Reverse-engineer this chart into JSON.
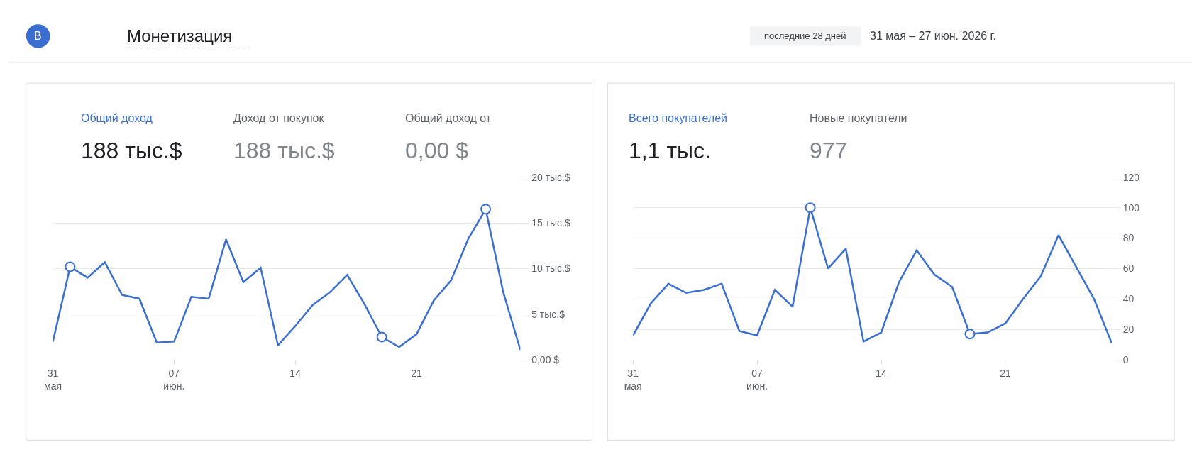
{
  "chart_data": [
    {
      "type": "other",
      "title": "Монетизация",
      "annotations": [
        "B",
        "последние 28 дней",
        "31 мая – 27 июн. 2026 г."
      ]
    },
    {
      "type": "line",
      "annotations": [
        "Общий доход",
        "188 тыс.$",
        "Доход от покупок",
        "188 тыс.$",
        "Общий доход от",
        "0,00 $"
      ],
      "x": [
        "2026-05-31",
        "2026-06-01",
        "2026-06-02",
        "2026-06-03",
        "2026-06-04",
        "2026-06-05",
        "2026-06-06",
        "2026-06-07",
        "2026-06-08",
        "2026-06-09",
        "2026-06-10",
        "2026-06-11",
        "2026-06-12",
        "2026-06-13",
        "2026-06-14",
        "2026-06-15",
        "2026-06-16",
        "2026-06-17",
        "2026-06-18",
        "2026-06-19",
        "2026-06-20",
        "2026-06-21",
        "2026-06-22",
        "2026-06-23",
        "2026-06-24",
        "2026-06-25",
        "2026-06-26",
        "2026-06-27"
      ],
      "series": [
        {
          "color": "#3a6fd1",
          "values": [
            2.0,
            10.2,
            9.0,
            10.7,
            7.1,
            6.7,
            1.9,
            2.0,
            6.9,
            6.7,
            13.2,
            8.5,
            10.1,
            1.6,
            3.7,
            6.0,
            7.4,
            9.3,
            6.1,
            2.5,
            1.4,
            2.8,
            6.5,
            8.7,
            13.3,
            16.5,
            7.5,
            1.1
          ]
        },
        {
          "type": "scatter",
          "marker": "circle",
          "color": "#3a6fd1",
          "x": [
            "2026-06-01",
            "2026-06-19",
            "2026-06-25"
          ],
          "values": [
            10.2,
            2.5,
            16.5
          ]
        }
      ],
      "xlim": [
        "2026-05-31",
        "2026-06-27"
      ],
      "xticks": [
        {
          "value": "2026-05-31",
          "label": "31\nмая"
        },
        {
          "value": "2026-06-07",
          "label": "07\nиюн."
        },
        {
          "value": "2026-06-14",
          "label": "14"
        },
        {
          "value": "2026-06-21",
          "label": "21"
        }
      ],
      "ylim": [
        0,
        20
      ],
      "yticks": [
        {
          "value": 0,
          "label": "0,00 $"
        },
        {
          "value": 5,
          "label": "5 тыс.$"
        },
        {
          "value": 10,
          "label": "10 тыс.$"
        },
        {
          "value": 15,
          "label": "15 тыс.$"
        },
        {
          "value": 20,
          "label": "20 тыс.$"
        }
      ],
      "grid": "y"
    },
    {
      "type": "line",
      "annotations": [
        "Всего покупателей",
        "1,1 тыс.",
        "Новые покупатели",
        "977"
      ],
      "x": [
        "2026-05-31",
        "2026-06-01",
        "2026-06-02",
        "2026-06-03",
        "2026-06-04",
        "2026-06-05",
        "2026-06-06",
        "2026-06-07",
        "2026-06-08",
        "2026-06-09",
        "2026-06-10",
        "2026-06-11",
        "2026-06-12",
        "2026-06-13",
        "2026-06-14",
        "2026-06-15",
        "2026-06-16",
        "2026-06-17",
        "2026-06-18",
        "2026-06-19",
        "2026-06-20",
        "2026-06-21",
        "2026-06-22",
        "2026-06-23",
        "2026-06-24",
        "2026-06-25",
        "2026-06-26",
        "2026-06-27"
      ],
      "series": [
        {
          "color": "#3a6fd1",
          "values": [
            16,
            37,
            50,
            44,
            46,
            50,
            19,
            16,
            46,
            35,
            100,
            60,
            73,
            12,
            18,
            51,
            72,
            56,
            48,
            17,
            18,
            24,
            40,
            55,
            82,
            61,
            40,
            11
          ]
        },
        {
          "type": "scatter",
          "marker": "circle",
          "color": "#3a6fd1",
          "x": [
            "2026-06-10",
            "2026-06-19"
          ],
          "values": [
            100,
            17
          ]
        }
      ],
      "xlim": [
        "2026-05-31",
        "2026-06-27"
      ],
      "xticks": [
        {
          "value": "2026-05-31",
          "label": "31\nмая"
        },
        {
          "value": "2026-06-07",
          "label": "07\nиюн."
        },
        {
          "value": "2026-06-14",
          "label": "14"
        },
        {
          "value": "2026-06-21",
          "label": "21"
        }
      ],
      "ylim": [
        0,
        120
      ],
      "yticks": [
        0,
        20,
        40,
        60,
        80,
        100,
        120
      ],
      "grid": "y"
    }
  ]
}
